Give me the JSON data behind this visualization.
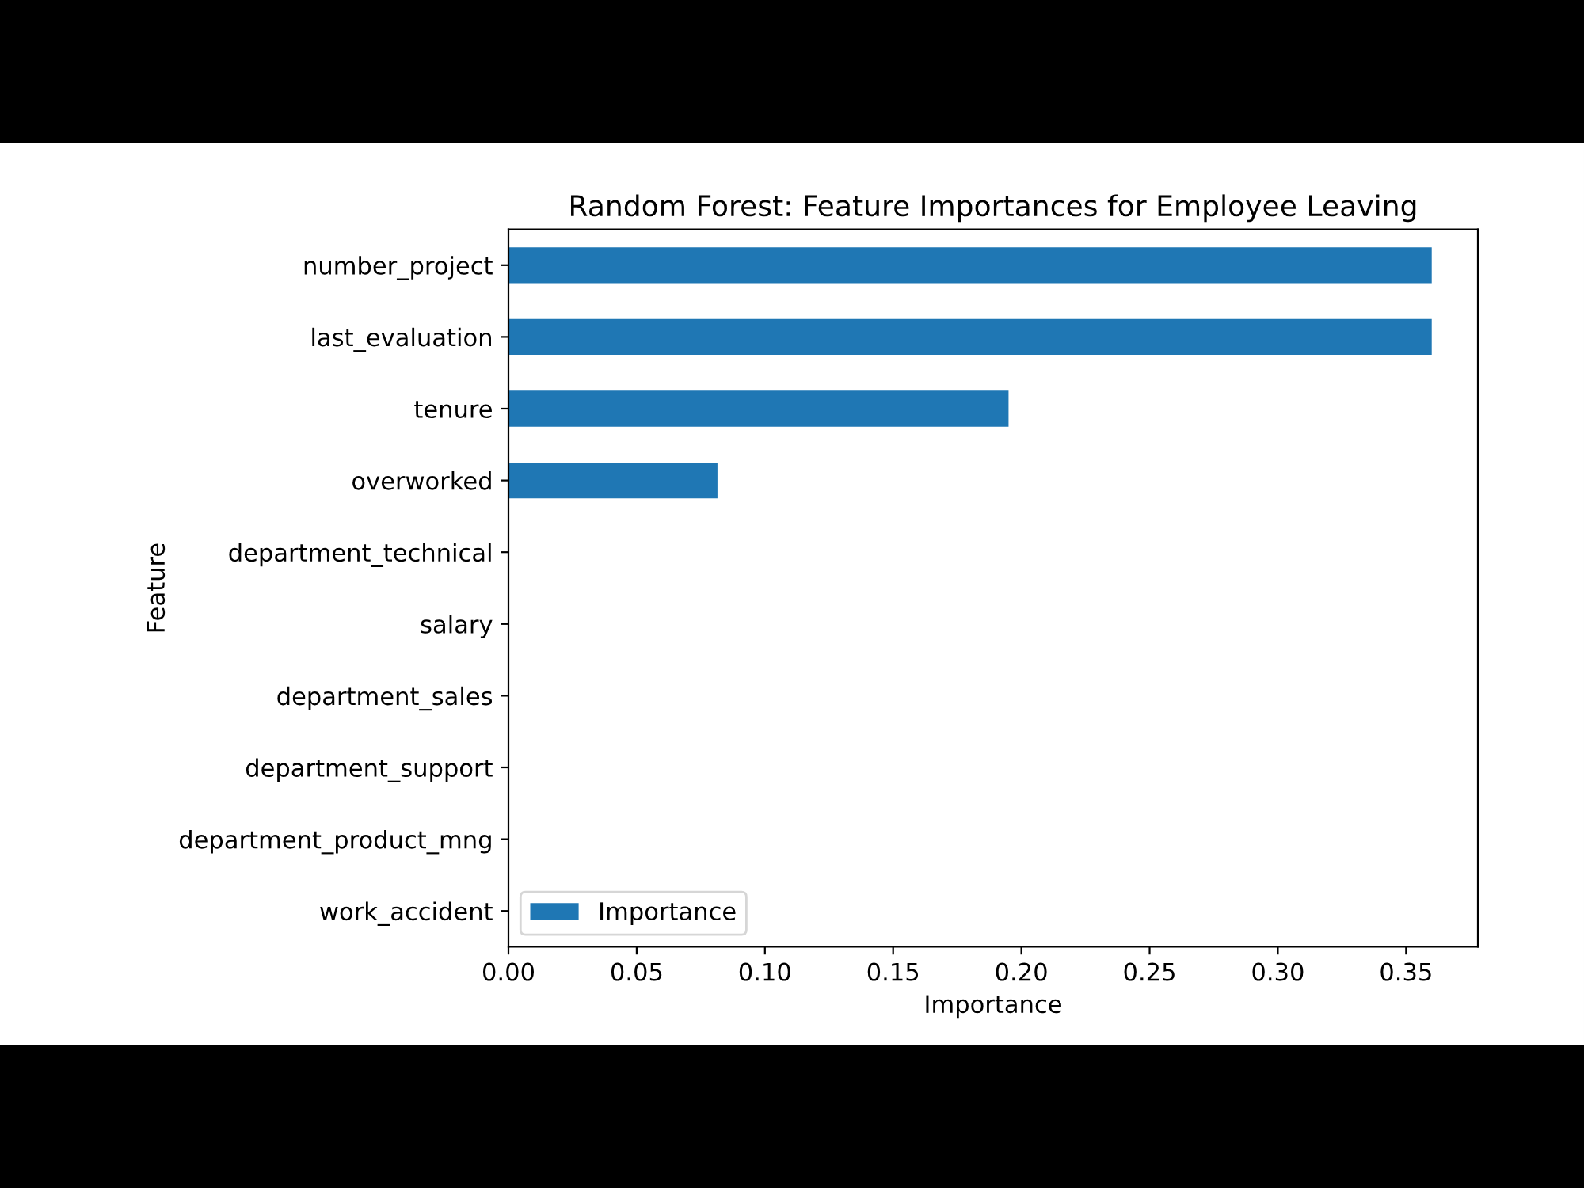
{
  "chart_data": {
    "type": "bar",
    "orientation": "horizontal",
    "title": "Random Forest: Feature Importances for Employee Leaving",
    "xlabel": "Importance",
    "ylabel": "Feature",
    "categories": [
      "number_project",
      "last_evaluation",
      "tenure",
      "overworked",
      "department_technical",
      "salary",
      "department_sales",
      "department_support",
      "department_product_mng",
      "work_accident"
    ],
    "series": [
      {
        "name": "Importance",
        "color": "#1f77b4",
        "values": [
          0.36,
          0.36,
          0.195,
          0.0815,
          0,
          0,
          0,
          0,
          0,
          0
        ]
      }
    ],
    "xlim": [
      0,
      0.378
    ],
    "xticks": [
      {
        "value": 0,
        "label": "0.00"
      },
      {
        "value": 0.05,
        "label": "0.05"
      },
      {
        "value": 0.1,
        "label": "0.10"
      },
      {
        "value": 0.15,
        "label": "0.15"
      },
      {
        "value": 0.2,
        "label": "0.20"
      },
      {
        "value": 0.25,
        "label": "0.25"
      },
      {
        "value": 0.3,
        "label": "0.30"
      },
      {
        "value": 0.35,
        "label": "0.35"
      }
    ],
    "legend": "lower left",
    "grid": false
  }
}
